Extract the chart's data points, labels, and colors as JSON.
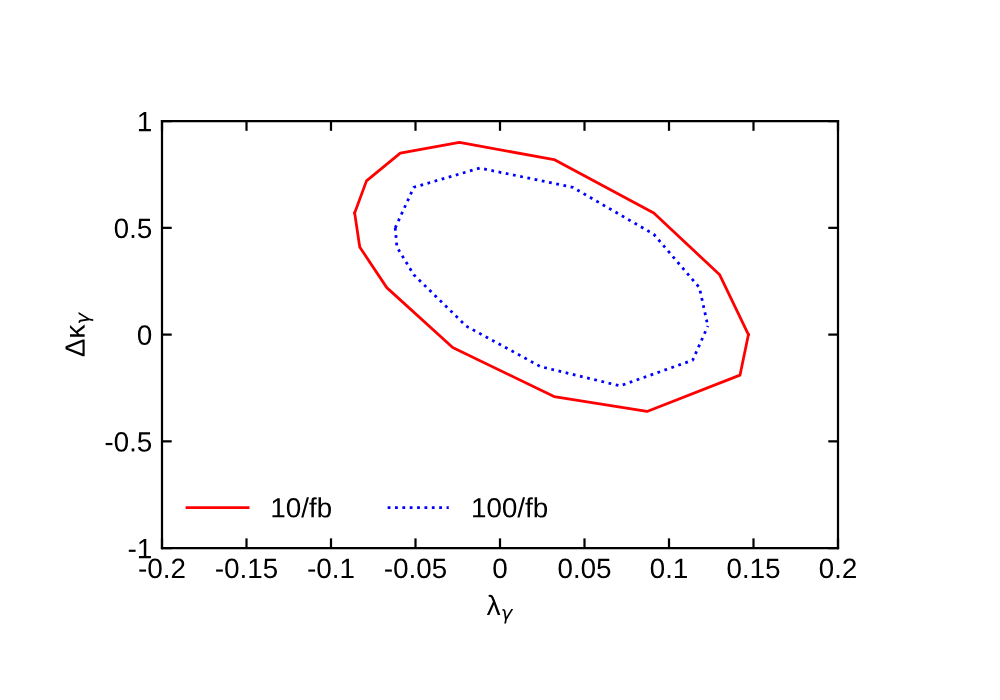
{
  "chart_data": {
    "type": "line",
    "xlabel": "λ$_{γ}$",
    "ylabel": "Δκ$_{γ}$",
    "xlim": [
      -0.2,
      0.2
    ],
    "ylim": [
      -1,
      1
    ],
    "xticks": [
      -0.2,
      -0.15,
      -0.1,
      -0.05,
      0,
      0.05,
      0.1,
      0.15,
      0.2
    ],
    "yticks": [
      -1,
      -0.5,
      0,
      0.5,
      1
    ],
    "grid": false,
    "legend": "bottom left",
    "marker": "none",
    "series": [
      {
        "name": "10/fb",
        "color": "#ff0000",
        "line_style": "solid",
        "x": [
          -0.086,
          -0.079,
          -0.059,
          -0.024,
          0.032,
          0.091,
          0.13,
          0.147
        ],
        "values": [
          0.57,
          0.72,
          0.85,
          0.9,
          0.82,
          0.57,
          0.28,
          0.0
        ]
      },
      {
        "color": "#ff0000",
        "line_style": "solid",
        "x": [
          -0.086,
          -0.083,
          -0.067,
          -0.028,
          0.032,
          0.087,
          0.142,
          0.147
        ],
        "values": [
          0.57,
          0.41,
          0.22,
          -0.06,
          -0.29,
          -0.36,
          -0.19,
          0.0
        ]
      },
      {
        "name": "100/fb",
        "color": "#0000ff",
        "line_style": "dotted",
        "x": [
          -0.062,
          -0.051,
          -0.012,
          0.043,
          0.091,
          0.118,
          0.123
        ],
        "values": [
          0.5,
          0.69,
          0.78,
          0.69,
          0.47,
          0.22,
          0.04
        ]
      },
      {
        "color": "#0000ff",
        "line_style": "dotted",
        "x": [
          -0.062,
          -0.061,
          -0.051,
          -0.02,
          0.024,
          0.071,
          0.114,
          0.123
        ],
        "values": [
          0.5,
          0.41,
          0.28,
          0.04,
          -0.15,
          -0.24,
          -0.12,
          0.04
        ]
      }
    ]
  }
}
